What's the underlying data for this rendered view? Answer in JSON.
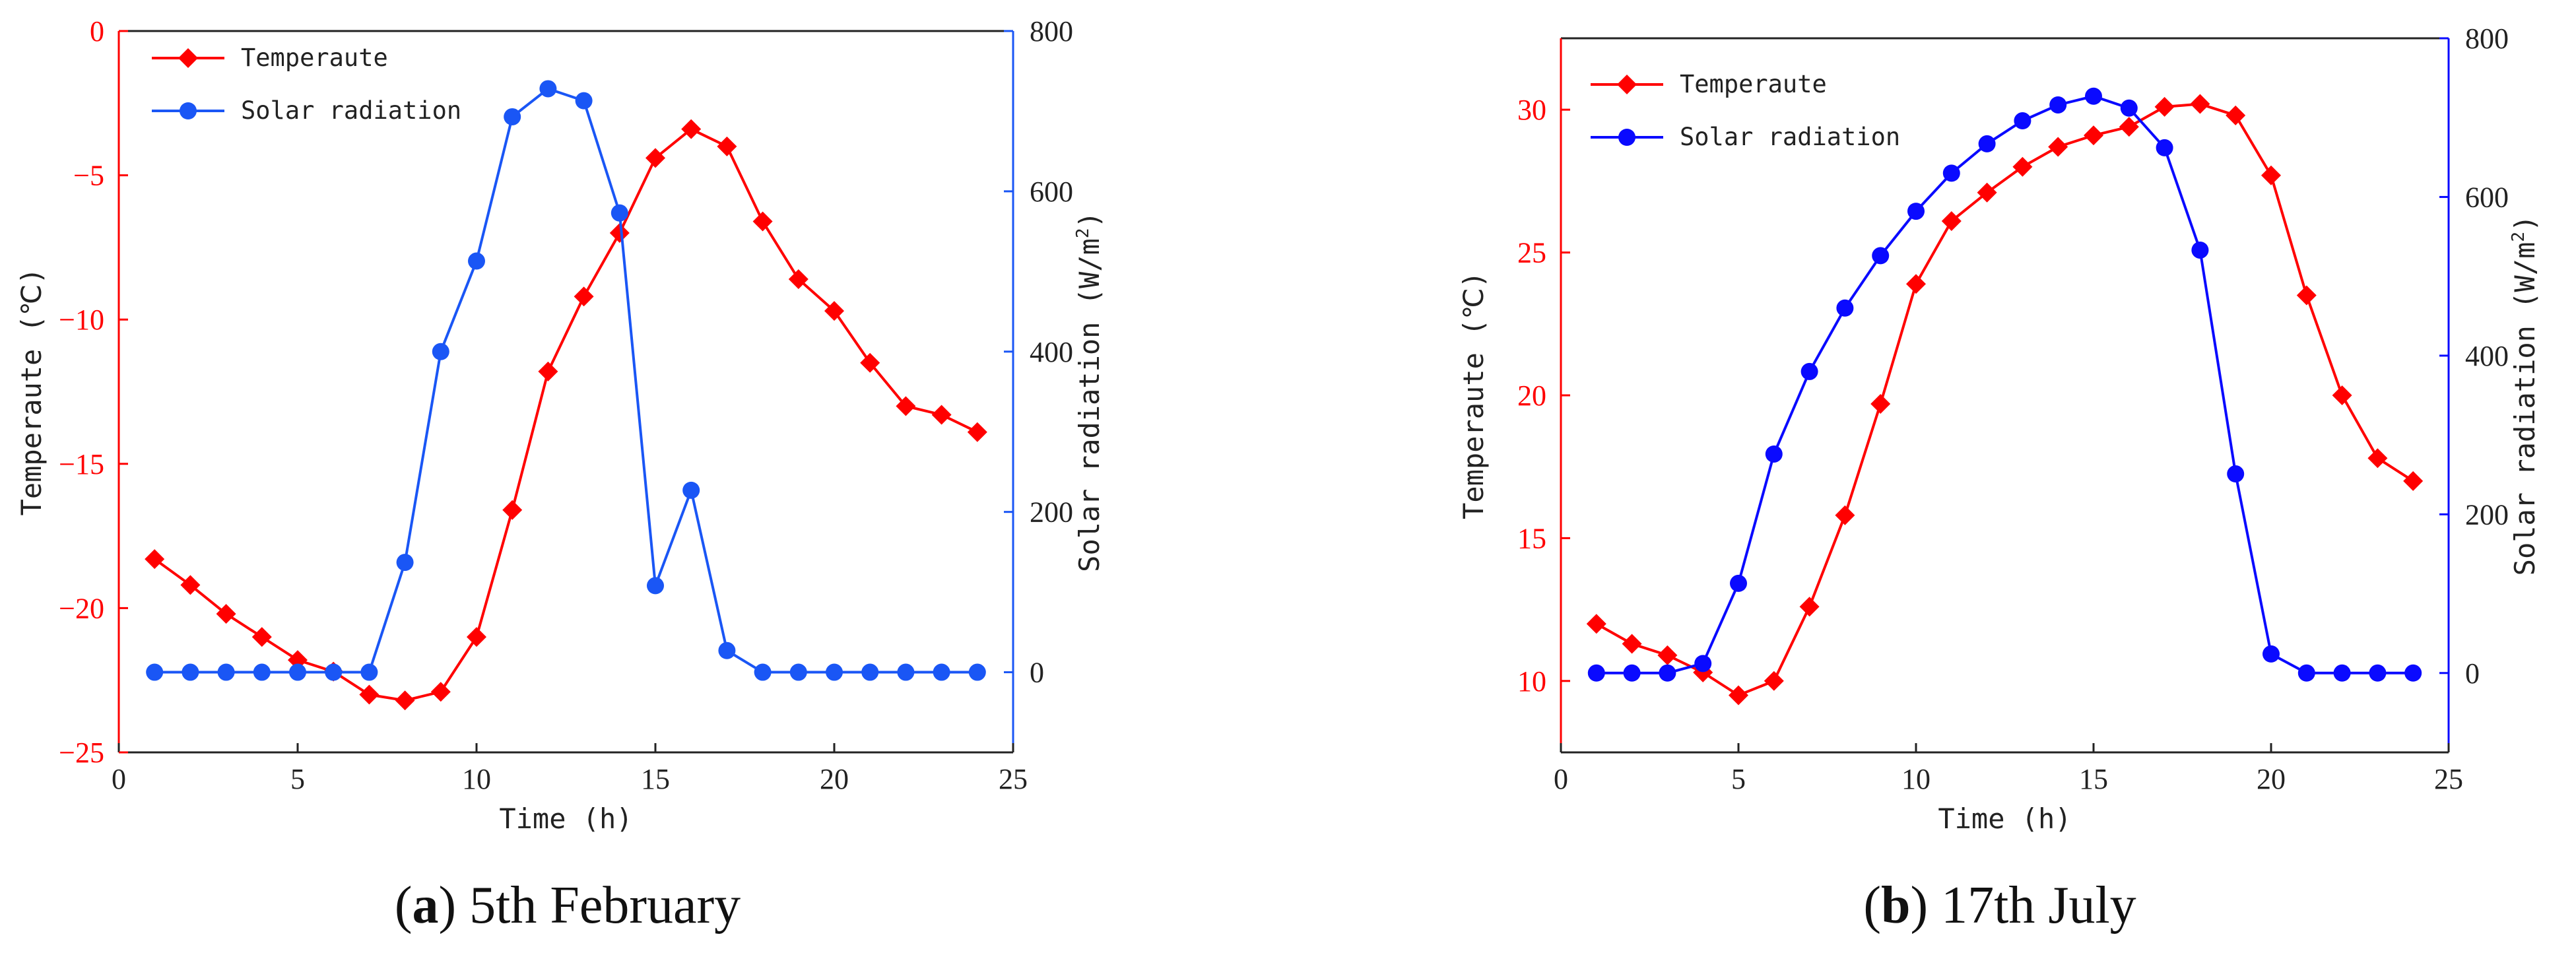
{
  "colors": {
    "temperature": "#ff0000",
    "radiation_a": "#1a56f5",
    "radiation_b": "#0a0aff",
    "axis": "#222222"
  },
  "chart_data": [
    {
      "type": "line",
      "panel_label": "a",
      "caption": "5th February",
      "xlabel": "Time (h)",
      "ylabel_left": "Temperaute (℃)",
      "ylabel_right_base": "Solar radiation (W/m",
      "ylabel_right_sup": "2",
      "ylabel_right_end": ")",
      "xlim": [
        0,
        25
      ],
      "xticks": [
        0,
        5,
        10,
        15,
        20,
        25
      ],
      "ylim_left": [
        -25,
        0
      ],
      "yticks_left": [
        -25,
        -20,
        -15,
        -10,
        -5,
        0
      ],
      "ylim_right": [
        -100,
        800
      ],
      "yticks_right": [
        0,
        200,
        400,
        600,
        800
      ],
      "legend_position": "top-left",
      "x": [
        1,
        2,
        3,
        4,
        5,
        6,
        7,
        8,
        9,
        10,
        11,
        12,
        13,
        14,
        15,
        16,
        17,
        18,
        19,
        20,
        21,
        22,
        23,
        24
      ],
      "series": [
        {
          "name": "Temperaute",
          "axis": "left",
          "marker": "diamond",
          "values": [
            -18.3,
            -19.2,
            -20.2,
            -21.0,
            -21.8,
            -22.2,
            -23.0,
            -23.2,
            -22.9,
            -21.0,
            -16.6,
            -11.8,
            -9.2,
            -7.0,
            -4.4,
            -3.4,
            -4.0,
            -6.6,
            -8.6,
            -9.7,
            -11.5,
            -13.0,
            -13.3,
            -13.9
          ]
        },
        {
          "name": "Solar radiation",
          "axis": "right",
          "marker": "circle",
          "values": [
            0,
            0,
            0,
            0,
            0,
            0,
            0,
            137,
            400,
            513,
            693,
            728,
            713,
            573,
            108,
            227,
            27,
            0,
            0,
            0,
            0,
            0,
            0,
            0
          ]
        }
      ]
    },
    {
      "type": "line",
      "panel_label": "b",
      "caption": "17th July",
      "xlabel": "Time (h)",
      "ylabel_left": "Temperaute (℃)",
      "ylabel_right_base": "Solar radiation (W/m",
      "ylabel_right_sup": "2",
      "ylabel_right_end": ")",
      "xlim": [
        0,
        25
      ],
      "xticks": [
        0,
        5,
        10,
        15,
        20,
        25
      ],
      "ylim_left": [
        7.5,
        32.5
      ],
      "yticks_left": [
        10,
        15,
        20,
        25,
        30
      ],
      "ylim_right": [
        -100,
        800
      ],
      "yticks_right": [
        0,
        200,
        400,
        600,
        800
      ],
      "legend_position": "top-left",
      "x": [
        1,
        2,
        3,
        4,
        5,
        6,
        7,
        8,
        9,
        10,
        11,
        12,
        13,
        14,
        15,
        16,
        17,
        18,
        19,
        20,
        21,
        22,
        23,
        24
      ],
      "series": [
        {
          "name": "Temperaute",
          "axis": "left",
          "marker": "diamond",
          "values": [
            12.0,
            11.3,
            10.9,
            10.3,
            9.5,
            10.0,
            12.6,
            15.8,
            19.7,
            23.9,
            26.1,
            27.1,
            28.0,
            28.7,
            29.1,
            29.4,
            30.1,
            30.2,
            29.8,
            27.7,
            23.5,
            20.0,
            17.8,
            17.0
          ]
        },
        {
          "name": "Solar radiation",
          "axis": "right",
          "marker": "circle",
          "values": [
            0,
            0,
            0,
            12,
            113,
            276,
            380,
            460,
            526,
            582,
            630,
            667,
            696,
            716,
            727,
            712,
            662,
            533,
            251,
            24,
            0,
            0,
            0,
            0
          ]
        }
      ]
    }
  ]
}
